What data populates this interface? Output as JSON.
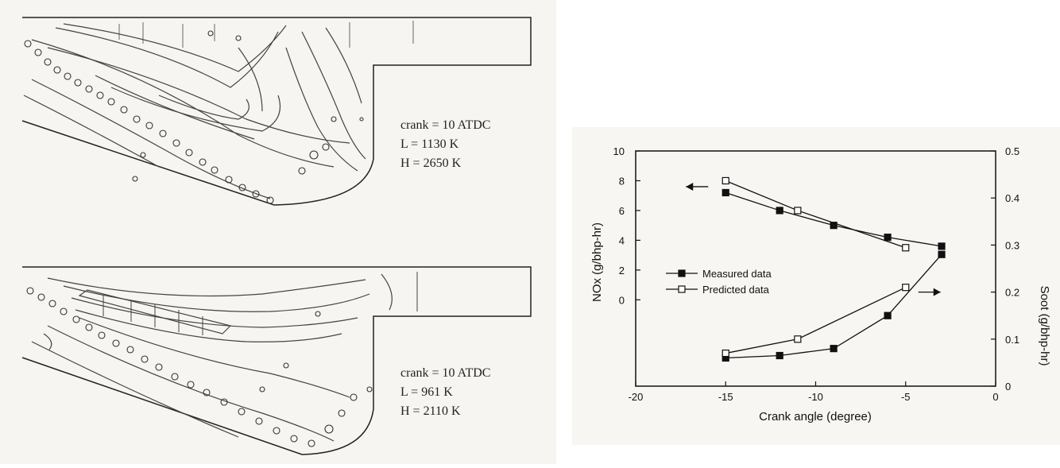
{
  "contour_panels": [
    {
      "crank": "crank = 10 ATDC",
      "low": "L = 1130 K",
      "high": "H = 2650 K"
    },
    {
      "crank": "crank = 10 ATDC",
      "low": "L = 961 K",
      "high": "H = 2110 K"
    }
  ],
  "chart_data": {
    "type": "line",
    "xlabel": "Crank angle (degree)",
    "ylabel_left": "NOx (g/bhp-hr)",
    "ylabel_right": "Soot (g/bhp-hr)",
    "xlim": [
      -20,
      0
    ],
    "ylim_left": [
      -5.8,
      10
    ],
    "ylim_right": [
      0,
      0.5
    ],
    "x_ticks": [
      "-20",
      "-15",
      "-10",
      "-5",
      "0"
    ],
    "y_left_ticks": [
      "0",
      "2",
      "4",
      "6",
      "8",
      "10"
    ],
    "y_right_ticks": [
      "0",
      "0.1",
      "0.2",
      "0.3",
      "0.4",
      "0.5"
    ],
    "legend": [
      "Measured data",
      "Predicted data"
    ],
    "legend_position": "center-left",
    "series": [
      {
        "name": "Measured data",
        "axis": "left",
        "marker": "filled-square",
        "x": [
          -15,
          -12,
          -9,
          -6,
          -3
        ],
        "y": [
          7.2,
          6.0,
          5.0,
          4.2,
          3.6
        ]
      },
      {
        "name": "Predicted data",
        "axis": "left",
        "marker": "open-square",
        "x": [
          -15,
          -11,
          -5
        ],
        "y": [
          8.0,
          6.0,
          3.5
        ]
      },
      {
        "name": "Measured data",
        "axis": "right",
        "marker": "filled-square",
        "x": [
          -15,
          -12,
          -9,
          -6,
          -3
        ],
        "y": [
          0.06,
          0.065,
          0.08,
          0.15,
          0.28
        ]
      },
      {
        "name": "Predicted data",
        "axis": "right",
        "marker": "open-square",
        "x": [
          -15,
          -11,
          -5
        ],
        "y": [
          0.07,
          0.1,
          0.21
        ]
      }
    ],
    "arrows": [
      {
        "x": -15,
        "y": 7.6,
        "axis": "left",
        "direction": "left"
      },
      {
        "x": -5,
        "y": 0.2,
        "axis": "right",
        "direction": "right"
      }
    ]
  }
}
